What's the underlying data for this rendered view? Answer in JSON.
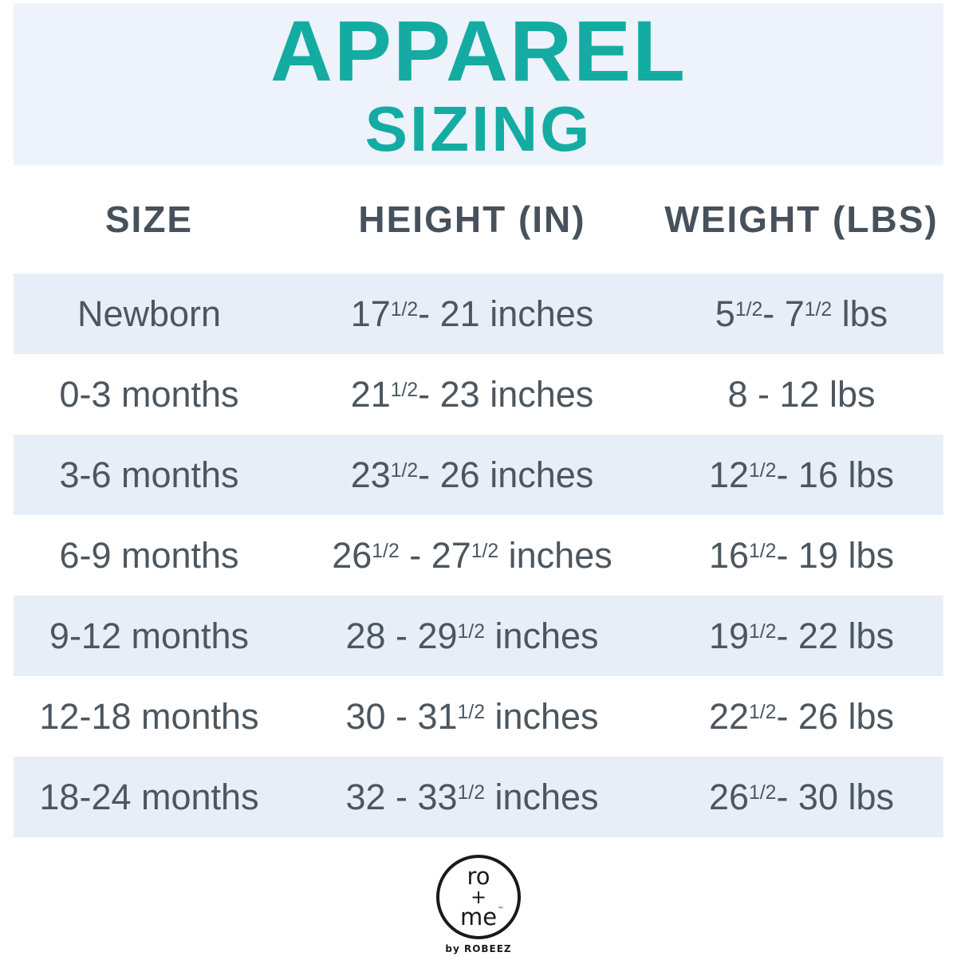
{
  "title": {
    "line1": "APPAREL",
    "line2": "SIZING"
  },
  "colors": {
    "accent": "#14aca2",
    "header_text": "#47515c",
    "body_text": "#4c565f",
    "row_blue": "#e8eef7",
    "top_band": "#edf2fb",
    "logo_ink": "#1a1a1a"
  },
  "table": {
    "headers": [
      "SIZE",
      "HEIGHT (IN)",
      "WEIGHT (LBS)"
    ],
    "rows": [
      {
        "size": "Newborn",
        "height": "17{1/2}- 21 inches",
        "weight": "5{1/2}- 7{1/2} lbs"
      },
      {
        "size": "0-3 months",
        "height": "21{1/2}- 23 inches",
        "weight": "8 - 12 lbs"
      },
      {
        "size": "3-6 months",
        "height": "23{1/2}- 26 inches",
        "weight": "12{1/2}- 16 lbs"
      },
      {
        "size": "6-9 months",
        "height": "26{1/2} - 27{1/2} inches",
        "weight": "16{1/2}- 19 lbs"
      },
      {
        "size": "9-12 months",
        "height": "28 - 29{1/2} inches",
        "weight": "19{1/2}- 22 lbs"
      },
      {
        "size": "12-18 months",
        "height": "30 - 31{1/2} inches",
        "weight": "22{1/2}- 26 lbs"
      },
      {
        "size": "18-24 months",
        "height": "32 - 33{1/2} inches",
        "weight": "26{1/2}- 30 lbs"
      }
    ]
  },
  "logo": {
    "line1": "ro",
    "line2": "+",
    "line3": "me",
    "trademark": "™",
    "tagline": "by ROBEEZ"
  },
  "chart_data": {
    "type": "table",
    "title": "APPAREL SIZING",
    "columns": [
      "SIZE",
      "HEIGHT (IN)",
      "WEIGHT (LBS)"
    ],
    "rows": [
      [
        "Newborn",
        "17 1/2 - 21 inches",
        "5 1/2 - 7 1/2 lbs"
      ],
      [
        "0-3 months",
        "21 1/2 - 23 inches",
        "8 - 12 lbs"
      ],
      [
        "3-6 months",
        "23 1/2 - 26 inches",
        "12 1/2 - 16 lbs"
      ],
      [
        "6-9 months",
        "26 1/2 - 27 1/2 inches",
        "16 1/2 - 19 lbs"
      ],
      [
        "9-12 months",
        "28 - 29 1/2 inches",
        "19 1/2 - 22 lbs"
      ],
      [
        "12-18 months",
        "30 - 31 1/2 inches",
        "22 1/2 - 26 lbs"
      ],
      [
        "18-24 months",
        "32 - 33 1/2 inches",
        "26 1/2 - 30 lbs"
      ]
    ]
  }
}
